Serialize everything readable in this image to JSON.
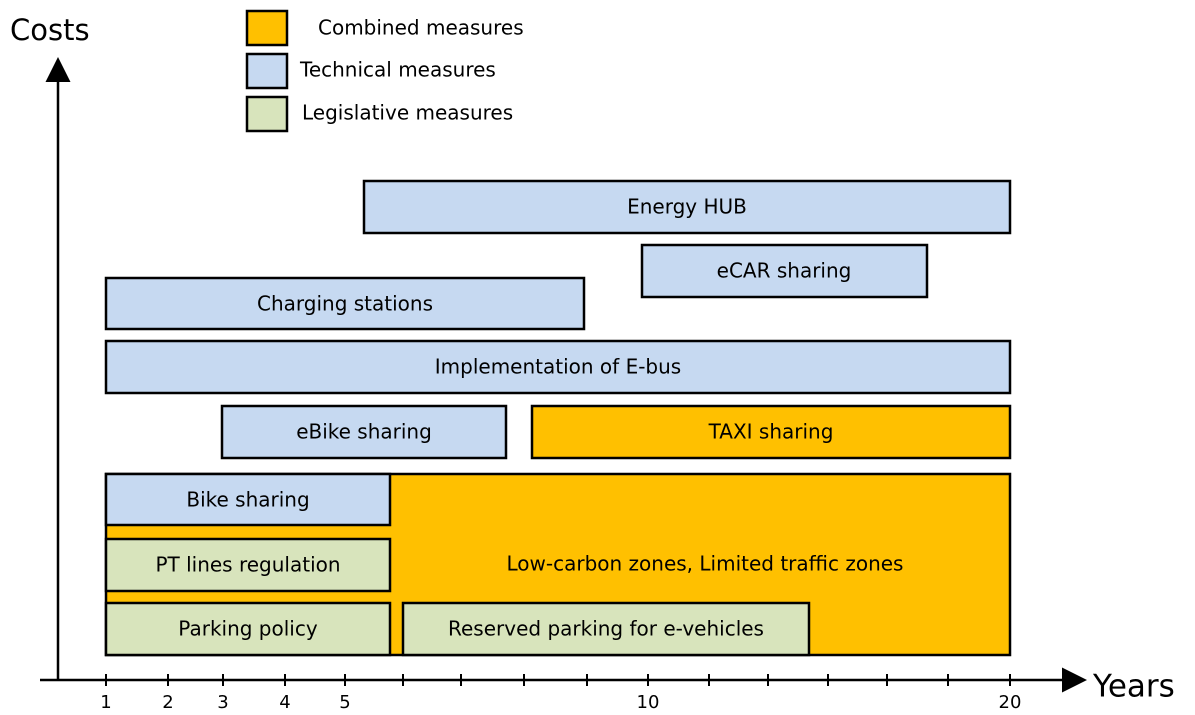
{
  "axes": {
    "y_label": "Costs",
    "x_label": "Years",
    "x_ticks": [
      1,
      2,
      3,
      4,
      5,
      10,
      20
    ]
  },
  "legend": [
    "Combined measures",
    "Technical measures",
    "Legislative measures"
  ],
  "nodes": [
    {
      "label": "Energy HUB"
    },
    {
      "label": "eCAR sharing"
    },
    {
      "label": "Charging stations"
    },
    {
      "label": "Implementation of E-bus"
    },
    {
      "label": "eBike sharing"
    },
    {
      "label": "TAXI sharing"
    },
    {
      "label": "Low-carbon zones, Limited traffic zones"
    },
    {
      "label": "Bike sharing"
    },
    {
      "label": "PT lines regulation"
    },
    {
      "label": "Parking policy"
    },
    {
      "label": "Reserved parking for e-vehicles"
    }
  ]
}
